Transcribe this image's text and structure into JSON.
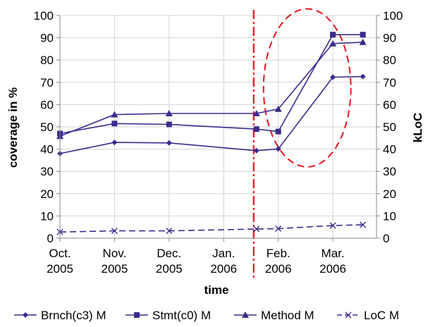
{
  "chart_data": {
    "type": "line",
    "x_labels": [
      {
        "line1": "Oct.",
        "line2": "2005",
        "x": 0
      },
      {
        "line1": "Nov.",
        "line2": "2005",
        "x": 1
      },
      {
        "line1": "Dec.",
        "line2": "2005",
        "x": 2
      },
      {
        "line1": "Jan.",
        "line2": "2006",
        "x": 3
      },
      {
        "line1": "Feb.",
        "line2": "2006",
        "x": 4
      },
      {
        "line1": "Mar.",
        "line2": "2006",
        "x": 5
      }
    ],
    "xlim": [
      0,
      5.8
    ],
    "xlabel": "time",
    "ylabel": "coverage in %",
    "y2label": "kLoC",
    "ylim": [
      0,
      100
    ],
    "y2lim": [
      0,
      100
    ],
    "yticks": [
      0,
      10,
      20,
      30,
      40,
      50,
      60,
      70,
      80,
      90,
      100
    ],
    "grid": true,
    "legend_position": "bottom",
    "series": [
      {
        "name": "Brnch(c3) M",
        "marker": "diamond",
        "dashed": false,
        "color": "#3a2c8c",
        "points": [
          [
            0,
            38
          ],
          [
            1,
            43
          ],
          [
            2,
            42.8
          ],
          [
            3.6,
            39.3
          ],
          [
            4,
            40.1
          ],
          [
            5,
            72.3
          ],
          [
            5.55,
            72.6
          ]
        ]
      },
      {
        "name": "Stmt(c0) M",
        "marker": "square",
        "dashed": false,
        "color": "#3a2c8c",
        "points": [
          [
            0,
            47
          ],
          [
            1,
            51.5
          ],
          [
            2,
            51.1
          ],
          [
            3.6,
            49
          ],
          [
            4,
            47.9
          ],
          [
            5,
            91.4
          ],
          [
            5.55,
            91.4
          ]
        ]
      },
      {
        "name": "Method M",
        "marker": "triangle",
        "dashed": false,
        "color": "#3a2c8c",
        "points": [
          [
            0,
            45.8
          ],
          [
            1,
            55.5
          ],
          [
            2,
            56
          ],
          [
            3.6,
            56
          ],
          [
            4,
            58
          ],
          [
            5,
            87.4
          ],
          [
            5.55,
            88
          ]
        ]
      },
      {
        "name": "LoC M",
        "marker": "x",
        "dashed": true,
        "color": "#3a2c8c",
        "points": [
          [
            0,
            2.8
          ],
          [
            1,
            3.3
          ],
          [
            2,
            3.3
          ],
          [
            3.6,
            4.1
          ],
          [
            4,
            4.3
          ],
          [
            5,
            5.7
          ],
          [
            5.55,
            6
          ]
        ]
      }
    ],
    "annotations": [
      {
        "type": "vertical-line",
        "x": 3.55,
        "color": "#e8141e",
        "style": "dash-dot"
      },
      {
        "type": "ellipse",
        "cx": 4.53,
        "cy": 67.5,
        "rx": 0.8,
        "ry": 35.5,
        "color": "#e8141e",
        "style": "dashed"
      }
    ]
  }
}
